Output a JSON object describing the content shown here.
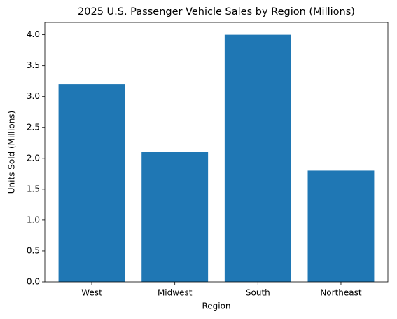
{
  "chart_data": {
    "type": "bar",
    "title": "2025 U.S. Passenger Vehicle Sales by Region (Millions)",
    "x_label": "Region",
    "y_label": "Units Sold (Millions)",
    "categories": [
      "West",
      "Midwest",
      "South",
      "Northeast"
    ],
    "values": [
      3.2,
      2.1,
      4.0,
      1.8
    ],
    "color": "#1f77b4",
    "ylim": [
      0,
      4.2
    ],
    "yticks": [
      {
        "value": 0,
        "label": "0.0"
      },
      0.5,
      {
        "value": 1,
        "label": "1.0"
      },
      1.5,
      {
        "value": 2,
        "label": "2.0"
      },
      2.5,
      {
        "value": 3,
        "label": "3.0"
      },
      3.5,
      {
        "value": 4,
        "label": "4.0"
      }
    ],
    "grid": false
  }
}
